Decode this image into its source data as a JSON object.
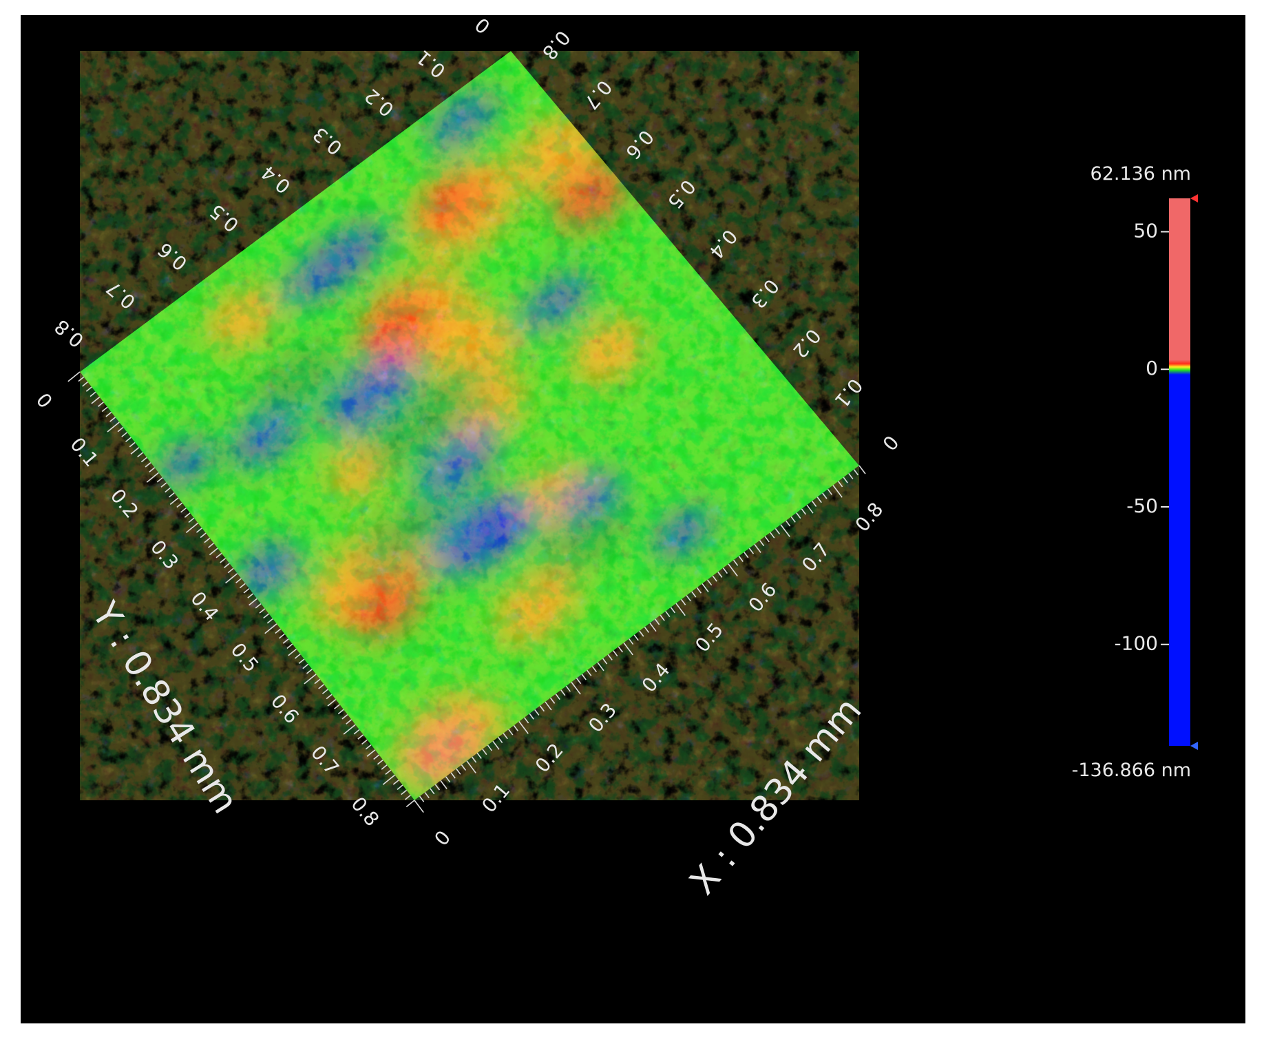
{
  "chart_data": {
    "type": "heatmap",
    "view": "3d-surface-topography-plan-view",
    "xlabel": "X : 0.834 mm",
    "ylabel": "Y : 0.834 mm",
    "xlim": [
      0,
      0.834
    ],
    "ylim": [
      0,
      0.834
    ],
    "x_ticks": [
      "0",
      "0.1",
      "0.2",
      "0.3",
      "0.4",
      "0.5",
      "0.6",
      "0.7",
      "0.8"
    ],
    "y_ticks": [
      "0",
      "0.1",
      "0.2",
      "0.3",
      "0.4",
      "0.5",
      "0.6",
      "0.7",
      "0.8"
    ],
    "colorbar": {
      "max_label": "62.136 nm",
      "min_label": "-136.866 nm",
      "max": 62.136,
      "min": -136.866,
      "ticks": [
        "50",
        "0",
        "-50",
        "-100"
      ],
      "tick_values": [
        50,
        0,
        -50,
        -100
      ]
    },
    "colors": {
      "background": "#000000",
      "high": "#f06868",
      "red": "#ff2a1a",
      "orange": "#ff9a1a",
      "yellow": "#ffee22",
      "green": "#22dd22",
      "dark_green": "#1a9a3a",
      "blue": "#1a2aee",
      "low": "#0010ff"
    },
    "grid": false
  }
}
